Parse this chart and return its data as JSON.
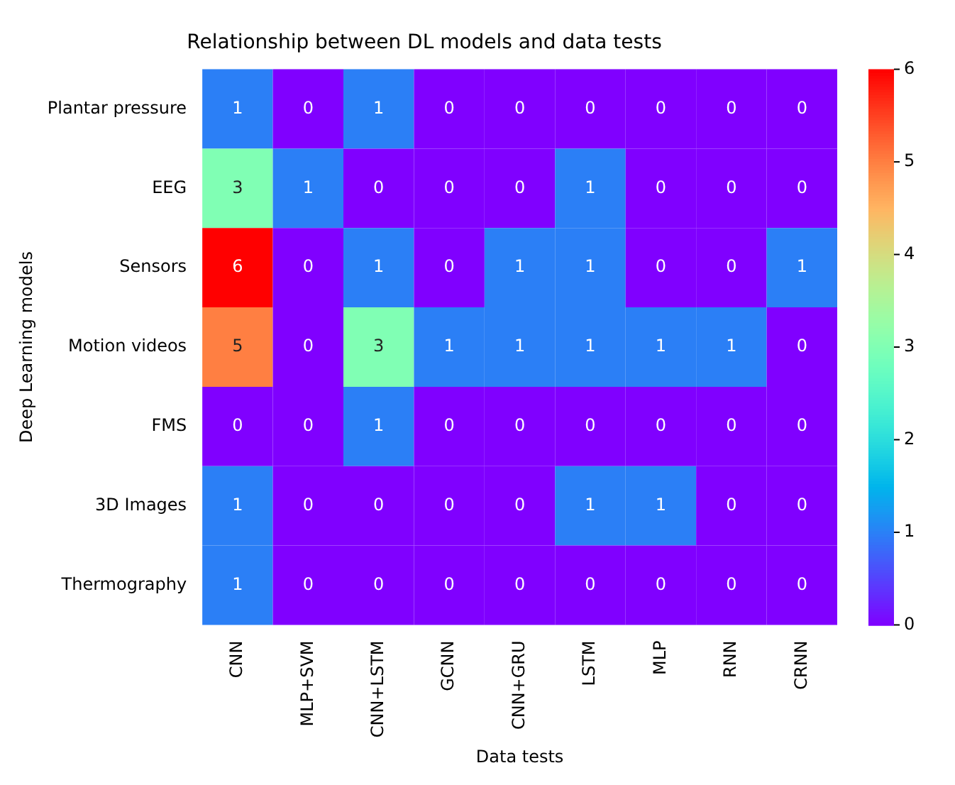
{
  "chart_data": {
    "type": "heatmap",
    "title": "Relationship between DL models and data tests",
    "xlabel": "Data tests",
    "ylabel": "Deep Learning models",
    "categories": [
      "CNN",
      "MLP+SVM",
      "CNN+LSTM",
      "GCNN",
      "CNN+GRU",
      "LSTM",
      "MLP",
      "RNN",
      "CRNN"
    ],
    "y_categories": [
      "Plantar pressure",
      "EEG",
      "Sensors",
      "Motion videos",
      "FMS",
      "3D Images",
      "Thermography"
    ],
    "cells": [
      [
        1,
        0,
        1,
        0,
        0,
        0,
        0,
        0,
        0
      ],
      [
        3,
        1,
        0,
        0,
        0,
        1,
        0,
        0,
        0
      ],
      [
        6,
        0,
        1,
        0,
        1,
        1,
        0,
        0,
        1
      ],
      [
        5,
        0,
        3,
        1,
        1,
        1,
        1,
        1,
        0
      ],
      [
        0,
        0,
        1,
        0,
        0,
        0,
        0,
        0,
        0
      ],
      [
        1,
        0,
        0,
        0,
        0,
        1,
        1,
        0,
        0
      ],
      [
        1,
        0,
        0,
        0,
        0,
        0,
        0,
        0,
        0
      ]
    ],
    "clim": [
      0,
      6
    ],
    "cticks": [
      0,
      1,
      2,
      3,
      4,
      5,
      6
    ],
    "data_labels": true
  }
}
